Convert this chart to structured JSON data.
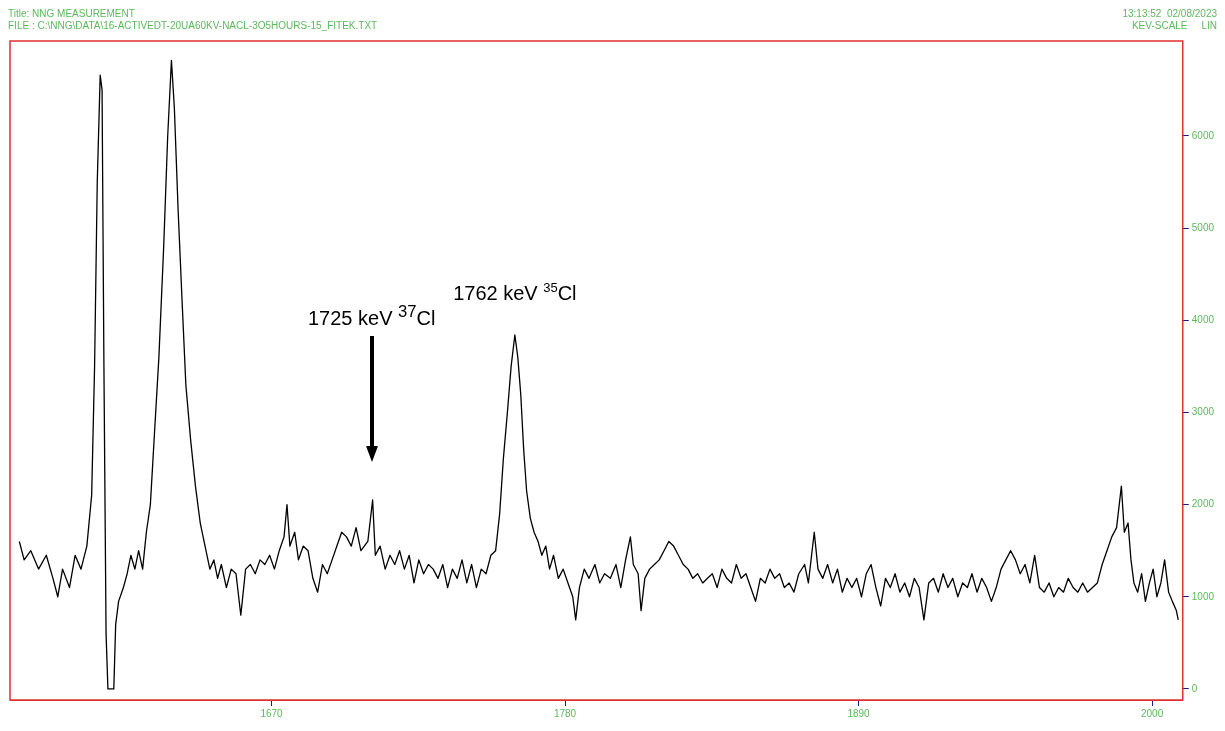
{
  "chart_data": {
    "type": "line",
    "title": "Title: NNG MEASUREMENT",
    "subtitle": "FILE : C:\\NNG\\DATA\\16-ACTIVEDT-20UA60KV-NACL-3O5HOURS-15_FITEK.TXT",
    "annotations": [
      "13:13:52  02/08/2023",
      "KEV-SCALE     LIN",
      "1725 keV $^{37}$Cl",
      {
        "text": "1762 keV $^{35}$Cl",
        "x": 1761.2,
        "y": 3840
      }
    ],
    "xlim": [
      1572,
      2011.5
    ],
    "xticks": [
      1670,
      1780,
      1890,
      2000
    ],
    "ylim": [
      -120,
      7030
    ],
    "yticks": [
      0,
      1000,
      2000,
      3000,
      4000,
      5000,
      6000
    ],
    "series": [
      {
        "color": "#000000",
        "x": [
          1575.5,
          1577.3,
          1579.8,
          1582.7,
          1585.6,
          1588.1,
          1589.9,
          1591.7,
          1594.3,
          1596.4,
          1598.6,
          1600.8,
          1602.6,
          1603.7,
          1604.7,
          1605.8,
          1606.5,
          1607.2,
          1608.0,
          1608.7,
          1610.9,
          1611.6,
          1612.7,
          1614.5,
          1615.9,
          1617.3,
          1618.8,
          1620.2,
          1621.7,
          1623.1,
          1624.6,
          1626.0,
          1627.8,
          1629.6,
          1631.1,
          1632.5,
          1633.6,
          1635.0,
          1636.5,
          1637.9,
          1639.7,
          1641.5,
          1643.3,
          1645.1,
          1646.9,
          1648.4,
          1649.8,
          1651.2,
          1653.1,
          1654.9,
          1656.7,
          1658.5,
          1660.3,
          1662.1,
          1663.9,
          1665.7,
          1667.5,
          1669.3,
          1671.1,
          1672.9,
          1674.7,
          1675.8,
          1676.9,
          1678.7,
          1680.1,
          1681.9,
          1683.7,
          1685.5,
          1687.3,
          1689.1,
          1690.9,
          1692.7,
          1694.5,
          1696.3,
          1698.1,
          1699.9,
          1701.7,
          1703.5,
          1706.1,
          1707.9,
          1708.9,
          1710.7,
          1712.6,
          1714.4,
          1716.2,
          1718.0,
          1719.8,
          1721.6,
          1723.4,
          1725.2,
          1727.0,
          1728.8,
          1730.6,
          1732.4,
          1734.2,
          1736.0,
          1737.8,
          1739.6,
          1741.4,
          1743.2,
          1745.0,
          1746.8,
          1748.6,
          1750.4,
          1752.2,
          1754.0,
          1755.5,
          1756.9,
          1758.4,
          1759.8,
          1761.2,
          1762.3,
          1763.4,
          1764.5,
          1765.6,
          1767.0,
          1768.4,
          1769.9,
          1771.3,
          1772.8,
          1774.2,
          1775.7,
          1777.5,
          1779.3,
          1781.1,
          1782.9,
          1784.0,
          1785.4,
          1787.2,
          1789.0,
          1791.2,
          1793.0,
          1794.8,
          1797.0,
          1799.1,
          1800.9,
          1802.7,
          1804.5,
          1805.6,
          1807.4,
          1808.5,
          1809.9,
          1811.7,
          1813.5,
          1815.3,
          1817.1,
          1818.9,
          1820.7,
          1822.5,
          1824.3,
          1826.1,
          1827.9,
          1829.7,
          1831.6,
          1833.4,
          1835.2,
          1837.0,
          1838.8,
          1840.6,
          1842.4,
          1844.2,
          1846.0,
          1847.8,
          1849.6,
          1851.4,
          1853.2,
          1855.0,
          1856.8,
          1858.6,
          1860.4,
          1862.2,
          1864.0,
          1865.8,
          1867.6,
          1869.8,
          1871.2,
          1873.4,
          1874.8,
          1876.6,
          1878.4,
          1880.3,
          1882.1,
          1883.9,
          1885.7,
          1887.5,
          1889.3,
          1891.1,
          1892.9,
          1894.7,
          1896.5,
          1898.3,
          1900.1,
          1901.9,
          1903.7,
          1905.5,
          1907.3,
          1909.1,
          1910.9,
          1912.7,
          1914.5,
          1916.3,
          1918.1,
          1919.9,
          1921.7,
          1923.5,
          1925.3,
          1927.2,
          1929.0,
          1930.8,
          1932.5,
          1934.4,
          1936.2,
          1938.0,
          1939.8,
          1941.6,
          1943.4,
          1945.2,
          1947.0,
          1948.8,
          1950.6,
          1952.4,
          1954.2,
          1956.0,
          1957.8,
          1959.6,
          1961.4,
          1963.2,
          1965.0,
          1966.8,
          1968.6,
          1970.4,
          1972.2,
          1974.0,
          1975.8,
          1977.7,
          1979.5,
          1981.3,
          1983.1,
          1984.9,
          1986.7,
          1988.5,
          1989.6,
          1991.0,
          1992.1,
          1993.2,
          1994.6,
          1996.1,
          1997.5,
          1999.0,
          2000.4,
          2001.8,
          2003.3,
          2004.7,
          2006.2,
          2007.6,
          2009.1,
          2009.8
        ],
        "values": [
          1600,
          1400,
          1500,
          1300,
          1450,
          1200,
          1000,
          1300,
          1100,
          1450,
          1300,
          1550,
          2100,
          3500,
          5500,
          6660,
          6500,
          3500,
          600,
          0,
          0,
          700,
          950,
          1100,
          1250,
          1450,
          1300,
          1500,
          1300,
          1700,
          2000,
          2700,
          3600,
          4800,
          6000,
          6820,
          6300,
          5200,
          4200,
          3300,
          2700,
          2200,
          1800,
          1550,
          1300,
          1400,
          1200,
          1350,
          1100,
          1300,
          1250,
          800,
          1300,
          1350,
          1250,
          1400,
          1350,
          1450,
          1300,
          1500,
          1650,
          2000,
          1550,
          1700,
          1400,
          1550,
          1500,
          1200,
          1050,
          1350,
          1250,
          1400,
          1550,
          1700,
          1650,
          1550,
          1750,
          1500,
          1600,
          2050,
          1450,
          1550,
          1300,
          1450,
          1350,
          1500,
          1300,
          1450,
          1150,
          1400,
          1250,
          1350,
          1300,
          1200,
          1350,
          1100,
          1300,
          1200,
          1400,
          1150,
          1350,
          1100,
          1300,
          1250,
          1450,
          1500,
          1900,
          2500,
          3000,
          3500,
          3840,
          3600,
          3200,
          2600,
          2150,
          1850,
          1700,
          1600,
          1450,
          1550,
          1300,
          1450,
          1200,
          1300,
          1150,
          1000,
          750,
          1100,
          1300,
          1200,
          1350,
          1150,
          1250,
          1200,
          1350,
          1100,
          1400,
          1650,
          1350,
          1250,
          850,
          1200,
          1300,
          1350,
          1400,
          1500,
          1600,
          1550,
          1450,
          1350,
          1300,
          1200,
          1250,
          1150,
          1200,
          1250,
          1100,
          1300,
          1200,
          1150,
          1350,
          1200,
          1250,
          1100,
          950,
          1200,
          1150,
          1300,
          1200,
          1250,
          1100,
          1150,
          1050,
          1250,
          1350,
          1150,
          1700,
          1300,
          1200,
          1350,
          1150,
          1300,
          1050,
          1200,
          1100,
          1200,
          1000,
          1250,
          1350,
          1100,
          900,
          1200,
          1100,
          1250,
          1050,
          1150,
          1000,
          1200,
          1100,
          750,
          1150,
          1200,
          1050,
          1250,
          1100,
          1200,
          1000,
          1150,
          1100,
          1250,
          1050,
          1200,
          1100,
          950,
          1100,
          1300,
          1400,
          1500,
          1400,
          1250,
          1350,
          1150,
          1450,
          1100,
          1050,
          1150,
          1000,
          1100,
          1050,
          1200,
          1100,
          1050,
          1150,
          1050,
          1100,
          1150,
          1350,
          1500,
          1650,
          1750,
          2200,
          1700,
          1800,
          1400,
          1150,
          1050,
          1250,
          950,
          1150,
          1300,
          1000,
          1150,
          1400,
          1050,
          950,
          850,
          750
        ]
      }
    ]
  }
}
